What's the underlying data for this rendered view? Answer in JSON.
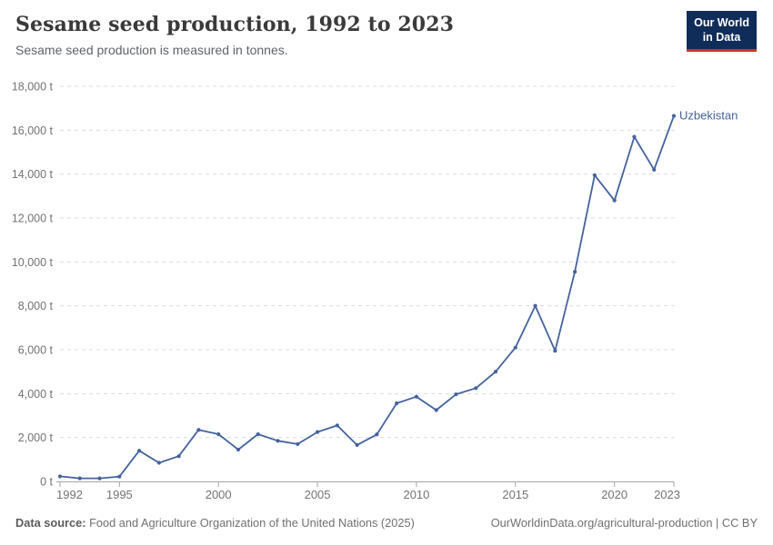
{
  "header": {
    "title": "Sesame seed production, 1992 to 2023",
    "subtitle": "Sesame seed production is measured in tonnes."
  },
  "logo": {
    "line1": "Our World",
    "line2": "in Data"
  },
  "footer": {
    "source_label": "Data source:",
    "source_text": " Food and Agriculture Organization of the United Nations (2025)",
    "credit": "OurWorldinData.org/agricultural-production | CC BY"
  },
  "colors": {
    "line": "#44639F",
    "logo_bg": "#102D59",
    "logo_accent": "#D13328",
    "grid": "#DBDBDB",
    "axis": "#A5A5A5",
    "tick_text": "#737373"
  },
  "chart_data": {
    "type": "line",
    "title": "Sesame seed production, 1992 to 2023",
    "subtitle": "Sesame seed production is measured in tonnes.",
    "unit": "t",
    "x": [
      1992,
      1993,
      1994,
      1995,
      1996,
      1997,
      1998,
      1999,
      2000,
      2001,
      2002,
      2003,
      2004,
      2005,
      2006,
      2007,
      2008,
      2009,
      2010,
      2011,
      2012,
      2013,
      2014,
      2015,
      2016,
      2017,
      2018,
      2019,
      2020,
      2021,
      2022,
      2023
    ],
    "series": [
      {
        "name": "Uzbekistan",
        "values": [
          230,
          140,
          140,
          220,
          1400,
          850,
          1150,
          2350,
          2150,
          1450,
          2150,
          1850,
          1700,
          2250,
          2550,
          1660,
          2140,
          3560,
          3860,
          3250,
          3970,
          4250,
          5000,
          6100,
          8000,
          5950,
          9550,
          13950,
          12800,
          15700,
          14200,
          16650
        ]
      }
    ],
    "xticks": [
      1992,
      1995,
      2000,
      2005,
      2010,
      2015,
      2020,
      2023
    ],
    "yticks": [
      0,
      2000,
      4000,
      6000,
      8000,
      10000,
      12000,
      14000,
      16000,
      18000
    ],
    "xlim": [
      1992,
      2023
    ],
    "ylim": [
      0,
      18000
    ],
    "grid": "horizontal-dashed",
    "legend": "line-end-label"
  }
}
